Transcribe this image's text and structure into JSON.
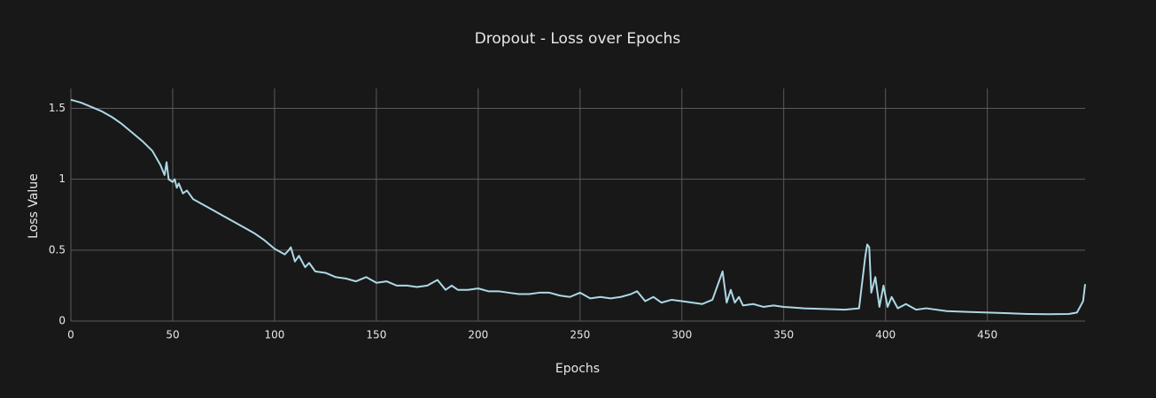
{
  "chart_data": {
    "type": "line",
    "title": "Dropout - Loss over Epochs",
    "x_label": "Epochs",
    "y_label": "Loss Value",
    "x": [
      0,
      5,
      10,
      15,
      20,
      25,
      30,
      35,
      40,
      44,
      46,
      47,
      48,
      50,
      51,
      52,
      53,
      55,
      57,
      60,
      65,
      70,
      75,
      80,
      85,
      90,
      95,
      100,
      105,
      107,
      108,
      110,
      112,
      115,
      117,
      120,
      125,
      130,
      135,
      140,
      145,
      150,
      155,
      160,
      165,
      170,
      175,
      180,
      184,
      187,
      190,
      195,
      200,
      205,
      210,
      215,
      220,
      225,
      230,
      235,
      240,
      245,
      250,
      255,
      260,
      265,
      270,
      275,
      278,
      282,
      286,
      290,
      295,
      300,
      305,
      310,
      315,
      320,
      322,
      324,
      326,
      328,
      330,
      335,
      340,
      345,
      350,
      360,
      370,
      380,
      387,
      390,
      391,
      392,
      393,
      395,
      397,
      399,
      401,
      403,
      406,
      410,
      415,
      420,
      430,
      440,
      450,
      460,
      470,
      480,
      490,
      494,
      497,
      498
    ],
    "values": [
      1.56,
      1.54,
      1.51,
      1.48,
      1.44,
      1.39,
      1.33,
      1.27,
      1.2,
      1.1,
      1.03,
      1.12,
      1.0,
      0.98,
      1.0,
      0.94,
      0.97,
      0.9,
      0.92,
      0.86,
      0.82,
      0.78,
      0.74,
      0.7,
      0.66,
      0.62,
      0.57,
      0.51,
      0.47,
      0.5,
      0.52,
      0.42,
      0.46,
      0.38,
      0.41,
      0.35,
      0.34,
      0.31,
      0.3,
      0.28,
      0.31,
      0.27,
      0.28,
      0.25,
      0.25,
      0.24,
      0.25,
      0.29,
      0.22,
      0.25,
      0.22,
      0.22,
      0.23,
      0.21,
      0.21,
      0.2,
      0.19,
      0.19,
      0.2,
      0.2,
      0.18,
      0.17,
      0.2,
      0.16,
      0.17,
      0.16,
      0.17,
      0.19,
      0.21,
      0.14,
      0.17,
      0.13,
      0.15,
      0.14,
      0.13,
      0.12,
      0.15,
      0.35,
      0.13,
      0.22,
      0.13,
      0.17,
      0.11,
      0.12,
      0.1,
      0.11,
      0.1,
      0.09,
      0.085,
      0.08,
      0.09,
      0.45,
      0.54,
      0.52,
      0.2,
      0.31,
      0.1,
      0.25,
      0.1,
      0.17,
      0.09,
      0.12,
      0.08,
      0.09,
      0.07,
      0.065,
      0.06,
      0.055,
      0.05,
      0.048,
      0.05,
      0.06,
      0.14,
      0.26
    ],
    "color": "#add8e6",
    "xlim": [
      0,
      498
    ],
    "ylim": [
      0,
      1.64
    ],
    "xticks": [
      0,
      50,
      100,
      150,
      200,
      250,
      300,
      350,
      400,
      450
    ],
    "yticks": [
      0,
      0.5,
      1,
      1.5
    ],
    "grid": true
  }
}
